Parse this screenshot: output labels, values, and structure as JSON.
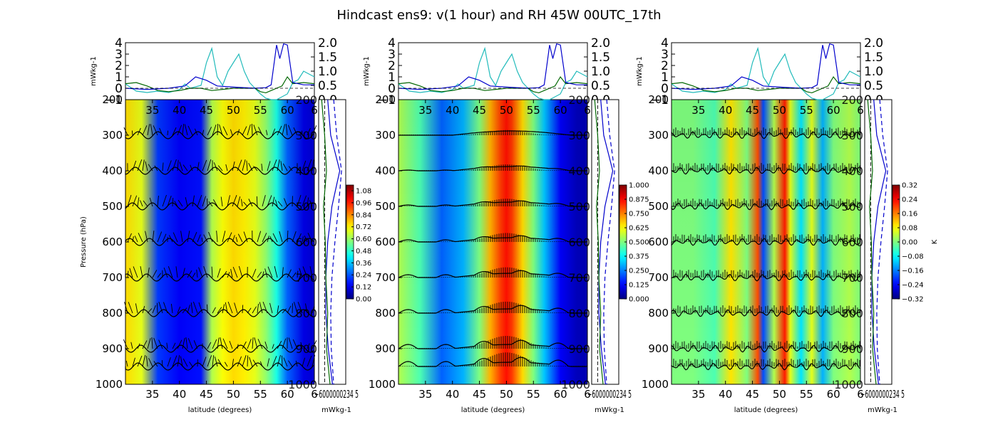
{
  "title": "Hindcast ens9: v(1 hour) and RH 45W 00UTC_17th",
  "colors": {
    "line_blue": "#0000cc",
    "line_green": "#006600",
    "line_cyan": "#22bbbb",
    "vector_black": "#000000",
    "colormap": [
      "#00007f",
      "#0000ff",
      "#007fff",
      "#00ffff",
      "#7fff7f",
      "#ffff00",
      "#ff7f00",
      "#ff0000",
      "#7f0000"
    ]
  },
  "chart_data": [
    {
      "type": "heatmap",
      "panel": "left",
      "main": {
        "xlabel": "latitude (degrees)",
        "ylabel": "Pressure (hPa)",
        "xlim": [
          30,
          65
        ],
        "xticks": [
          "35",
          "40",
          "45",
          "50",
          "55",
          "60",
          "6"
        ],
        "ylim": [
          1000,
          200
        ],
        "yticks": [
          "200",
          "300",
          "400",
          "500",
          "600",
          "700",
          "800",
          "900",
          "1000"
        ],
        "field": {
          "comment": "approximate normalized field levels along latitude",
          "lat": [
            30,
            33,
            36,
            40,
            44,
            46,
            48,
            50,
            52,
            54,
            56,
            58,
            60,
            63,
            65
          ],
          "level": [
            0.66,
            0.6,
            0.18,
            0.12,
            0.14,
            0.55,
            0.62,
            0.66,
            0.64,
            0.6,
            0.52,
            0.4,
            0.22,
            0.1,
            0.08
          ]
        },
        "vector_rows": [
          300,
          400,
          500,
          600,
          700,
          800,
          900,
          950
        ]
      },
      "top": {
        "ylabel": "mWkg-1",
        "yticks_left": [
          "−1",
          "0",
          "1",
          "2",
          "3",
          "4"
        ],
        "yticks_right": [
          "0.0",
          "0.5",
          "1.0",
          "1.5",
          "2.0"
        ],
        "ylim_left": [
          -1,
          4
        ],
        "ylim_right": [
          0,
          2
        ]
      },
      "side": {
        "xlabel": "mWkg-1",
        "xticks": "−6000000234 5",
        "yticks": [
          "200",
          "300",
          "400",
          "500",
          "600",
          "700",
          "800",
          "900",
          "1000"
        ]
      },
      "colorbar": {
        "ticks": [
          "0.00",
          "0.12",
          "0.24",
          "0.36",
          "0.48",
          "0.60",
          "0.72",
          "0.84",
          "0.96",
          "1.08"
        ],
        "label": ""
      }
    },
    {
      "type": "heatmap",
      "panel": "center",
      "main": {
        "xlabel": "latitude (degrees)",
        "ylabel": "",
        "xlim": [
          30,
          65
        ],
        "xticks": [
          "35",
          "40",
          "45",
          "50",
          "55",
          "60",
          "6"
        ],
        "ylim": [
          1000,
          200
        ],
        "yticks": [
          "200",
          "300",
          "400",
          "500",
          "600",
          "700",
          "800",
          "900",
          "1000"
        ],
        "field": {
          "lat": [
            30,
            34,
            38,
            42,
            45,
            47,
            49,
            50,
            51,
            53,
            55,
            57,
            60,
            63,
            65
          ],
          "level": [
            0.55,
            0.45,
            0.22,
            0.3,
            0.5,
            0.7,
            0.82,
            0.86,
            0.82,
            0.66,
            0.5,
            0.32,
            0.12,
            0.06,
            0.05
          ]
        },
        "vector_rows": [
          300,
          400,
          500,
          600,
          700,
          800,
          900,
          950
        ]
      },
      "top": {
        "ylabel": "mWkg-1",
        "yticks_left": [
          "−1",
          "0",
          "1",
          "2",
          "3",
          "4"
        ],
        "yticks_right": [
          "0.0",
          "0.5",
          "1.0",
          "1.5",
          "2.0"
        ],
        "ylim_left": [
          -1,
          4
        ],
        "ylim_right": [
          0,
          2
        ]
      },
      "side": {
        "xlabel": "mWkg-1",
        "xticks": "−6000000234 5",
        "yticks": [
          "200",
          "300",
          "400",
          "500",
          "600",
          "700",
          "800",
          "900",
          "1000"
        ]
      },
      "colorbar": {
        "ticks": [
          "0.000",
          "0.125",
          "0.250",
          "0.375",
          "0.500",
          "0.625",
          "0.750",
          "0.875",
          "1.000"
        ],
        "label": ""
      }
    },
    {
      "type": "heatmap",
      "panel": "right",
      "main": {
        "xlabel": "latitude (degrees)",
        "ylabel": "",
        "xlim": [
          30,
          65
        ],
        "xticks": [
          "35",
          "40",
          "45",
          "50",
          "55",
          "60",
          "6"
        ],
        "ylim": [
          1000,
          200
        ],
        "yticks": [
          "200",
          "300",
          "400",
          "500",
          "600",
          "700",
          "800",
          "900",
          "1000"
        ],
        "field": {
          "lat": [
            30,
            34,
            38,
            41,
            44,
            46,
            47,
            49,
            51,
            52,
            54,
            56,
            58,
            60,
            63,
            65
          ],
          "level": [
            0.5,
            0.5,
            0.45,
            0.65,
            0.5,
            0.8,
            0.2,
            0.55,
            0.85,
            0.6,
            0.35,
            0.6,
            0.3,
            0.5,
            0.55,
            0.5
          ]
        },
        "vector_rows": [
          300,
          400,
          500,
          600,
          700,
          800,
          900,
          950
        ]
      },
      "top": {
        "ylabel": "mWkg-1",
        "yticks_left": [
          "−1",
          "0",
          "1",
          "2",
          "3",
          "4"
        ],
        "yticks_right": [
          "0.0",
          "0.5",
          "1.0",
          "1.5",
          "2.0"
        ],
        "ylim_left": [
          -1,
          4
        ],
        "ylim_right": [
          0,
          2
        ]
      },
      "side": {
        "xlabel": "mWkg-1",
        "xticks": "−6000000234 5",
        "yticks": [
          "200",
          "300",
          "400",
          "500",
          "600",
          "700",
          "800",
          "900",
          "1000"
        ]
      },
      "colorbar": {
        "ticks": [
          "−0.32",
          "−0.24",
          "−0.16",
          "−0.08",
          "0.00",
          "0.08",
          "0.16",
          "0.24",
          "0.32"
        ],
        "label": "K"
      }
    }
  ],
  "profiles": {
    "top_cyan": [
      [
        30,
        0.55
      ],
      [
        32,
        0.3
      ],
      [
        34,
        0.25
      ],
      [
        36,
        0.3
      ],
      [
        38,
        0.25
      ],
      [
        40,
        0.35
      ],
      [
        41,
        0.55
      ],
      [
        42,
        0.4
      ],
      [
        44,
        0.5
      ],
      [
        45,
        1.3
      ],
      [
        46,
        1.8
      ],
      [
        47,
        0.8
      ],
      [
        48,
        0.5
      ],
      [
        49,
        1.0
      ],
      [
        50,
        1.3
      ],
      [
        51,
        1.6
      ],
      [
        52,
        1.0
      ],
      [
        53,
        0.6
      ],
      [
        54,
        0.4
      ],
      [
        55,
        0.2
      ],
      [
        56,
        0.05
      ],
      [
        57,
        0.0
      ],
      [
        58,
        0.0
      ],
      [
        59,
        0.1
      ],
      [
        60,
        0.2
      ],
      [
        61,
        0.6
      ],
      [
        62,
        0.7
      ],
      [
        63,
        1.0
      ],
      [
        64,
        0.9
      ],
      [
        65,
        0.8
      ]
    ],
    "top_blue": [
      [
        30,
        0.0
      ],
      [
        34,
        -0.1
      ],
      [
        38,
        0.0
      ],
      [
        41,
        0.2
      ],
      [
        43,
        1.0
      ],
      [
        45,
        0.7
      ],
      [
        47,
        0.2
      ],
      [
        50,
        0.1
      ],
      [
        54,
        0.0
      ],
      [
        56,
        0.05
      ],
      [
        57,
        0.3
      ],
      [
        58,
        3.8
      ],
      [
        58.6,
        2.6
      ],
      [
        59.3,
        3.9
      ],
      [
        60,
        3.8
      ],
      [
        61,
        0.5
      ],
      [
        63,
        0.3
      ],
      [
        65,
        0.3
      ]
    ],
    "top_green": [
      [
        30,
        0.4
      ],
      [
        32,
        0.5
      ],
      [
        34,
        0.2
      ],
      [
        36,
        -0.2
      ],
      [
        38,
        -0.3
      ],
      [
        40,
        -0.2
      ],
      [
        42,
        0.0
      ],
      [
        44,
        0.0
      ],
      [
        46,
        -0.2
      ],
      [
        48,
        -0.1
      ],
      [
        50,
        0.0
      ],
      [
        52,
        0.0
      ],
      [
        54,
        0.0
      ],
      [
        55,
        -0.3
      ],
      [
        56,
        -0.4
      ],
      [
        57,
        -0.2
      ],
      [
        58,
        0.0
      ],
      [
        59,
        0.2
      ],
      [
        60,
        1.0
      ],
      [
        61,
        0.4
      ],
      [
        63,
        0.5
      ],
      [
        65,
        0.4
      ]
    ],
    "side_blue_solid": [
      [
        0.5,
        200
      ],
      [
        1.0,
        300
      ],
      [
        2.5,
        400
      ],
      [
        1.2,
        500
      ],
      [
        0.5,
        600
      ],
      [
        0.2,
        700
      ],
      [
        0.2,
        800
      ],
      [
        0.6,
        900
      ],
      [
        1.3,
        1000
      ]
    ],
    "side_blue_dashed": [
      [
        1.5,
        200
      ],
      [
        2.0,
        300
      ],
      [
        2.8,
        400
      ],
      [
        2.3,
        500
      ],
      [
        1.7,
        600
      ],
      [
        1.2,
        700
      ],
      [
        1.0,
        800
      ],
      [
        1.1,
        900
      ],
      [
        1.5,
        1000
      ]
    ],
    "side_green": [
      [
        -0.5,
        200
      ],
      [
        0.0,
        300
      ],
      [
        0.3,
        400
      ],
      [
        -0.2,
        500
      ],
      [
        0.1,
        600
      ],
      [
        0.2,
        700
      ],
      [
        0.5,
        800
      ],
      [
        0.3,
        900
      ],
      [
        0.9,
        1000
      ]
    ]
  }
}
